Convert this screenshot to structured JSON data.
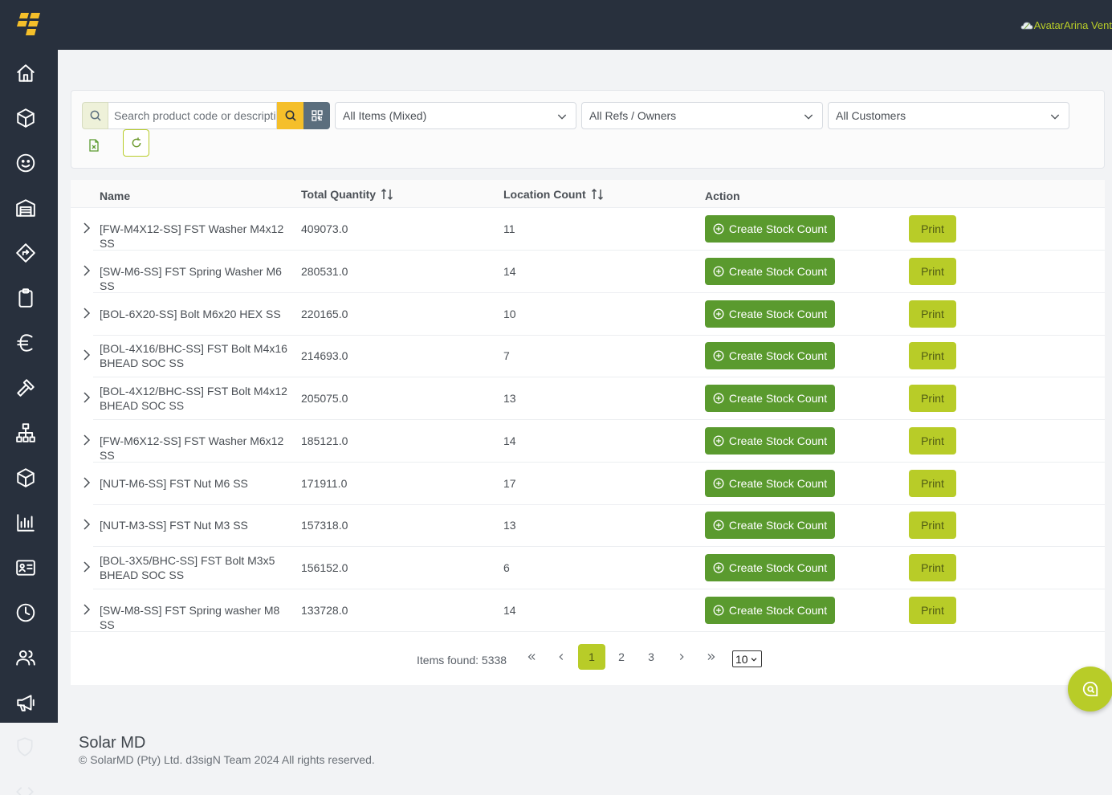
{
  "user": {
    "label": "AvatarArina Vent"
  },
  "sidebar": {
    "items": [
      {
        "icon": "home-icon"
      },
      {
        "icon": "box-icon"
      },
      {
        "icon": "smiley-icon"
      },
      {
        "icon": "warehouse-icon"
      },
      {
        "icon": "directions-icon"
      },
      {
        "icon": "clipboard-icon"
      },
      {
        "icon": "euro-icon"
      },
      {
        "icon": "hammer-icon"
      },
      {
        "icon": "sitemap-icon"
      },
      {
        "icon": "package-icon"
      },
      {
        "icon": "bar-chart-icon"
      },
      {
        "icon": "id-card-icon"
      },
      {
        "icon": "clock-icon"
      },
      {
        "icon": "users-icon"
      },
      {
        "icon": "megaphone-icon"
      },
      {
        "icon": "shield-icon"
      },
      {
        "icon": "code-icon"
      }
    ]
  },
  "filters": {
    "search_placeholder": "Search product code or description",
    "items_select": "All Items (Mixed)",
    "refs_select": "All Refs / Owners",
    "customers_select": "All Customers"
  },
  "table": {
    "headers": {
      "name": "Name",
      "total_quantity": "Total Quantity",
      "location_count": "Location Count",
      "action": "Action"
    },
    "create_label": "Create Stock Count",
    "print_label": "Print",
    "rows": [
      {
        "name": "[FW-M4X12-SS] FST Washer M4x12 SS",
        "qty": "409073.0",
        "loc": "11"
      },
      {
        "name": "[SW-M6-SS] FST Spring Washer M6 SS",
        "qty": "280531.0",
        "loc": "14"
      },
      {
        "name": "[BOL-6X20-SS] Bolt M6x20 HEX SS",
        "qty": "220165.0",
        "loc": "10"
      },
      {
        "name": "[BOL-4X16/BHC-SS] FST Bolt M4x16 BHEAD SOC SS",
        "qty": "214693.0",
        "loc": "7"
      },
      {
        "name": "[BOL-4X12/BHC-SS] FST Bolt M4x12 BHEAD SOC SS",
        "qty": "205075.0",
        "loc": "13"
      },
      {
        "name": "[FW-M6X12-SS] FST Washer M6x12 SS",
        "qty": "185121.0",
        "loc": "14"
      },
      {
        "name": "[NUT-M6-SS] FST Nut M6 SS",
        "qty": "171911.0",
        "loc": "17"
      },
      {
        "name": "[NUT-M3-SS] FST Nut M3 SS",
        "qty": "157318.0",
        "loc": "13"
      },
      {
        "name": "[BOL-3X5/BHC-SS] FST Bolt M3x5 BHEAD SOC SS",
        "qty": "156152.0",
        "loc": "6"
      },
      {
        "name": "[SW-M8-SS] FST Spring washer M8 SS",
        "qty": "133728.0",
        "loc": "14"
      }
    ]
  },
  "pagination": {
    "items_found": "Items found: 5338",
    "pages": [
      "1",
      "2",
      "3"
    ],
    "current_page": "1",
    "page_size": "10"
  },
  "footer": {
    "title": "Solar MD",
    "copyright": "© SolarMD (Pty) Ltd. d3sigN Team 2024 All rights reserved."
  },
  "colors": {
    "sidebar_bg": "#28303d",
    "accent_lime": "#b8cc28",
    "create_green": "#5a9a2e",
    "search_yellow": "#f5bf2a"
  }
}
